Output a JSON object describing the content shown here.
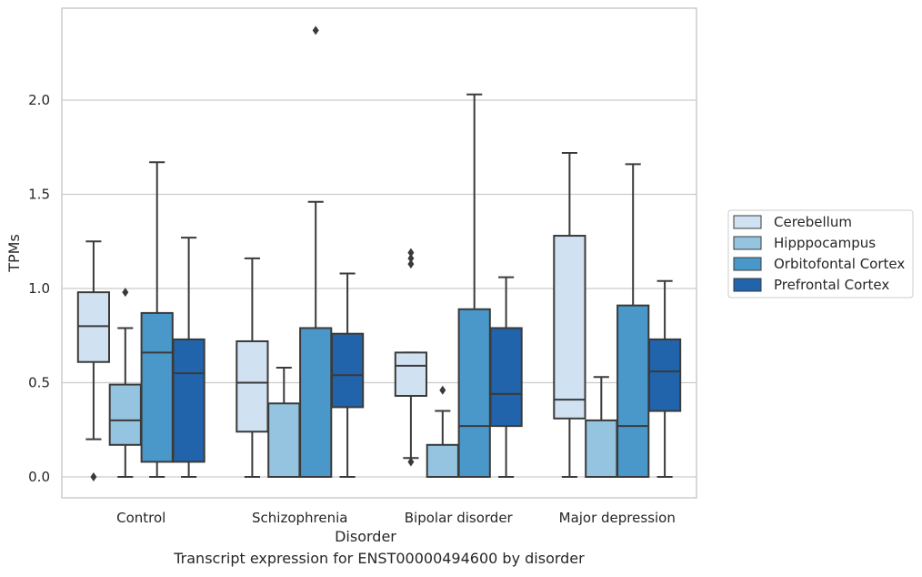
{
  "caption": "Transcript expression for ENST00000494600 by disorder",
  "chart_data": {
    "type": "boxplot",
    "xlabel": "Disorder",
    "ylabel": "TPMs",
    "ylim": [
      -0.11,
      2.45
    ],
    "yticks": [
      0.0,
      0.5,
      1.0,
      1.5,
      2.0
    ],
    "ytick_labels": [
      "0.0",
      "0.5",
      "1.0",
      "1.5",
      "2.0"
    ],
    "grid": "horizontal",
    "legend_position": "right",
    "categories": [
      "Control",
      "Schizophrenia",
      "Bipolar disorder",
      "Major depression"
    ],
    "series": [
      {
        "name": "Cerebellum",
        "color": "#d0e1f2",
        "boxes": [
          {
            "whislo": 0.2,
            "q1": 0.61,
            "med": 0.8,
            "q3": 0.98,
            "whishi": 1.25,
            "fliers": [
              0.0
            ]
          },
          {
            "whislo": 0.0,
            "q1": 0.24,
            "med": 0.5,
            "q3": 0.72,
            "whishi": 1.16,
            "fliers": []
          },
          {
            "whislo": 0.1,
            "q1": 0.43,
            "med": 0.59,
            "q3": 0.66,
            "whishi": 0.66,
            "fliers": [
              0.08,
              1.13,
              1.16,
              1.19
            ]
          },
          {
            "whislo": 0.0,
            "q1": 0.31,
            "med": 0.41,
            "q3": 1.28,
            "whishi": 1.72,
            "fliers": []
          }
        ]
      },
      {
        "name": "Hipppocampus",
        "color": "#94c4df",
        "boxes": [
          {
            "whislo": 0.0,
            "q1": 0.17,
            "med": 0.3,
            "q3": 0.49,
            "whishi": 0.79,
            "fliers": [
              0.98
            ]
          },
          {
            "whislo": 0.0,
            "q1": 0.0,
            "med": 0.0,
            "q3": 0.39,
            "whishi": 0.58,
            "fliers": []
          },
          {
            "whislo": 0.0,
            "q1": 0.0,
            "med": 0.0,
            "q3": 0.17,
            "whishi": 0.35,
            "fliers": [
              0.46
            ]
          },
          {
            "whislo": 0.0,
            "q1": 0.0,
            "med": 0.0,
            "q3": 0.3,
            "whishi": 0.53,
            "fliers": []
          }
        ]
      },
      {
        "name": "Orbitofontal Cortex",
        "color": "#4a98c9",
        "boxes": [
          {
            "whislo": 0.0,
            "q1": 0.08,
            "med": 0.66,
            "q3": 0.87,
            "whishi": 1.67,
            "fliers": []
          },
          {
            "whislo": 0.0,
            "q1": 0.0,
            "med": 0.0,
            "q3": 0.79,
            "whishi": 1.46,
            "fliers": [
              2.37
            ]
          },
          {
            "whislo": 0.0,
            "q1": 0.0,
            "med": 0.27,
            "q3": 0.89,
            "whishi": 2.03,
            "fliers": []
          },
          {
            "whislo": 0.0,
            "q1": 0.0,
            "med": 0.27,
            "q3": 0.91,
            "whishi": 1.66,
            "fliers": []
          }
        ]
      },
      {
        "name": "Prefrontal Cortex",
        "color": "#2164ab",
        "boxes": [
          {
            "whislo": 0.0,
            "q1": 0.08,
            "med": 0.55,
            "q3": 0.73,
            "whishi": 1.27,
            "fliers": []
          },
          {
            "whislo": 0.0,
            "q1": 0.37,
            "med": 0.54,
            "q3": 0.76,
            "whishi": 1.08,
            "fliers": []
          },
          {
            "whislo": 0.0,
            "q1": 0.27,
            "med": 0.44,
            "q3": 0.79,
            "whishi": 1.06,
            "fliers": []
          },
          {
            "whislo": 0.0,
            "q1": 0.35,
            "med": 0.56,
            "q3": 0.73,
            "whishi": 1.04,
            "fliers": []
          }
        ]
      }
    ]
  }
}
